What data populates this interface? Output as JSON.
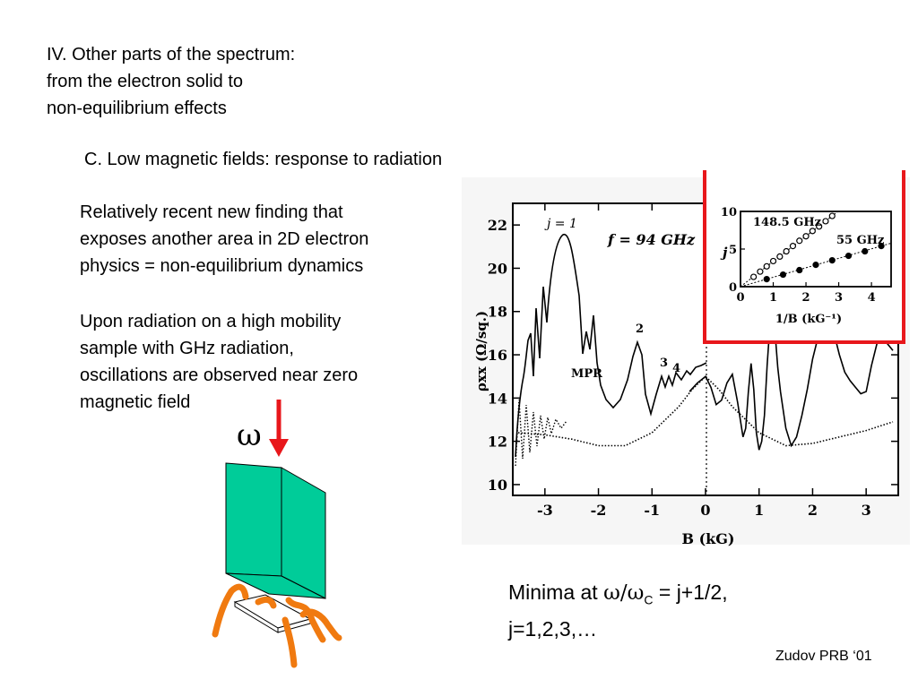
{
  "slide": {
    "title": "IV. Other parts of the spectrum:\nfrom the electron solid to\nnon-equilibrium effects",
    "subtitle": "C. Low magnetic fields: response to radiation",
    "paragraph1": "Relatively recent new finding that\nexposes another area in 2D electron\nphysics = non-equilibrium dynamics",
    "paragraph2": "Upon radiation on a high mobility\nsample with GHz radiation,\noscillations are observed near zero\nmagnetic field",
    "omega_label": "ω",
    "minima_prefix": "Minima at ",
    "minima_ratio": "ω/ω",
    "minima_sub": "C",
    "minima_eq": " = j+1/2,",
    "minima_line2": "j=1,2,3,…",
    "citation": "Zudov PRB ‘01"
  },
  "colors": {
    "sample_face": "#00cc99",
    "contacts": "#f07a10",
    "arrow": "#e8171b",
    "highlight_box": "#e8171b"
  },
  "chart_data": [
    {
      "type": "line",
      "xlabel": "B (kG)",
      "ylabel": "ρxx (Ω/sq.)",
      "xlim": [
        -3.6,
        3.6
      ],
      "ylim": [
        9.5,
        23
      ],
      "xticks": [
        -3,
        -2,
        -1,
        0,
        1,
        2,
        3
      ],
      "yticks": [
        10,
        12,
        14,
        16,
        18,
        20,
        22
      ],
      "annotations": [
        "j = 1",
        "f = 94 GHz",
        "MPR",
        "2",
        "3",
        "4"
      ],
      "series": [
        {
          "style": "solid",
          "x": [
            -0.3,
            -0.15,
            0,
            0.1,
            0.2,
            0.3,
            0.4,
            0.5,
            0.6,
            0.7,
            0.75,
            0.8,
            0.85,
            0.9,
            0.95,
            1.0,
            1.05,
            1.1,
            1.15,
            1.2,
            1.25,
            1.3,
            1.35,
            1.4,
            1.5,
            1.6,
            1.7,
            1.8,
            1.9,
            2.0,
            2.1,
            2.2,
            2.3,
            2.4,
            2.5,
            2.6,
            2.7,
            2.8,
            2.9,
            3.0,
            3.1,
            3.2,
            3.3,
            3.4,
            3.5
          ],
          "y": [
            14.3,
            14.7,
            15.0,
            14.5,
            13.7,
            13.9,
            14.7,
            15.1,
            13.8,
            12.2,
            12.6,
            14.3,
            15.6,
            14.4,
            12.4,
            11.6,
            12.0,
            13.2,
            15.5,
            17.3,
            18.4,
            17.0,
            15.4,
            14.3,
            12.6,
            11.8,
            12.2,
            13.2,
            14.4,
            15.8,
            16.8,
            17.3,
            17.5,
            17.0,
            16.0,
            15.2,
            14.8,
            14.5,
            14.2,
            14.3,
            15.5,
            16.5,
            16.9,
            16.5,
            16.2
          ]
        },
        {
          "style": "dotted",
          "x": [
            -3.5,
            -3.0,
            -2.5,
            -2.0,
            -1.5,
            -1.0,
            -0.5,
            -0.25,
            0,
            0.25,
            0.5,
            1.0,
            1.5,
            2.0,
            2.5,
            3.0,
            3.5
          ],
          "y": [
            12.4,
            12.3,
            12.1,
            11.8,
            11.8,
            12.4,
            13.6,
            14.4,
            15.0,
            14.4,
            13.6,
            12.4,
            11.8,
            11.9,
            12.2,
            12.5,
            12.9
          ]
        }
      ]
    },
    {
      "type": "scatter",
      "xlabel": "1/B (kG⁻¹)",
      "ylabel": "j",
      "xlim": [
        0,
        4.6
      ],
      "ylim": [
        0,
        10
      ],
      "xticks": [
        0,
        1,
        2,
        3,
        4
      ],
      "yticks": [
        0,
        5,
        10
      ],
      "series": [
        {
          "name": "148.5 GHz",
          "marker": "open-circle",
          "x": [
            0.4,
            0.6,
            0.8,
            1.0,
            1.2,
            1.4,
            1.6,
            1.8,
            2.0,
            2.2,
            2.4,
            2.6,
            2.8
          ],
          "y": [
            1.3,
            2.0,
            2.7,
            3.4,
            4.0,
            4.7,
            5.4,
            6.1,
            6.7,
            7.4,
            8.0,
            8.7,
            9.4
          ]
        },
        {
          "name": "55 GHz",
          "marker": "filled-circle",
          "x": [
            0.8,
            1.3,
            1.8,
            2.3,
            2.8,
            3.3,
            3.8,
            4.3
          ],
          "y": [
            1.0,
            1.6,
            2.2,
            2.9,
            3.5,
            4.1,
            4.7,
            5.4
          ]
        }
      ]
    }
  ]
}
